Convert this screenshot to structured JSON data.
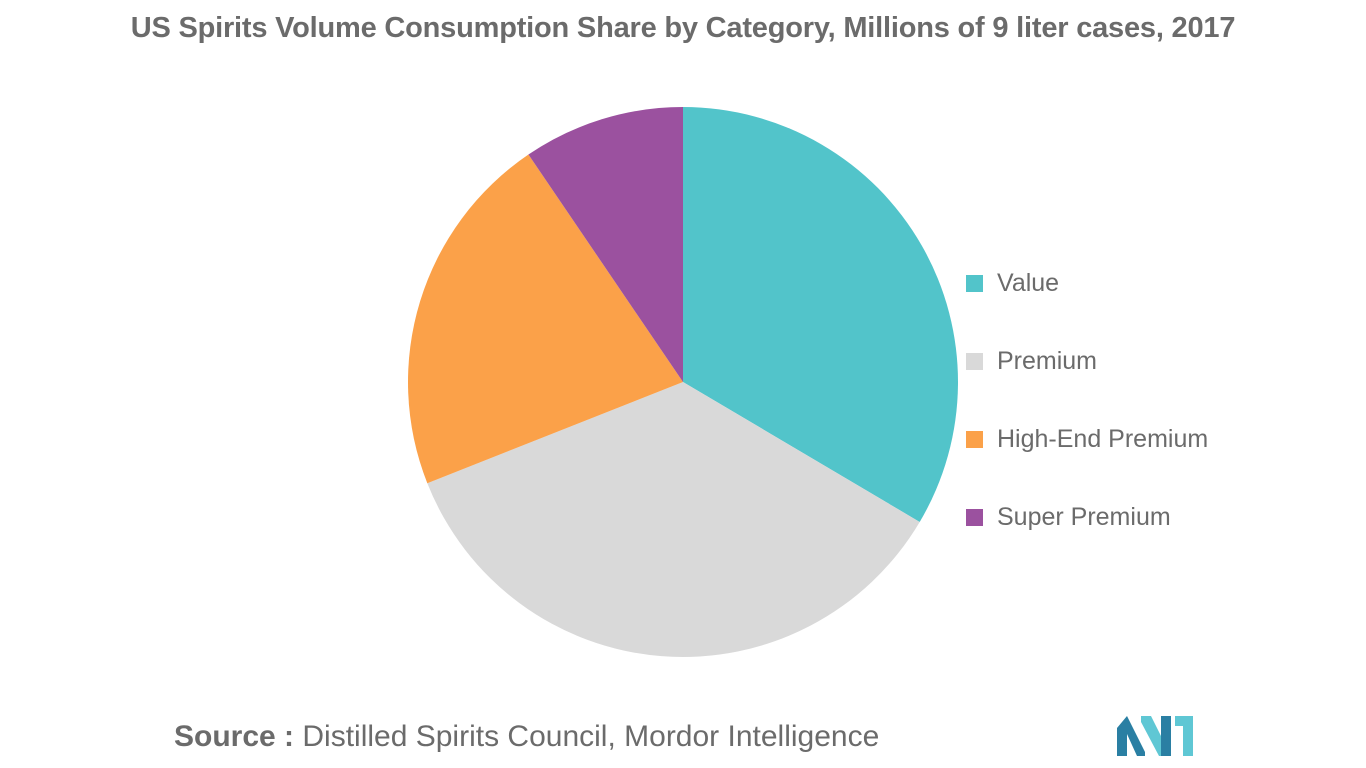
{
  "header": {
    "title": "US Spirits Volume Consumption Share by Category, Millions of 9 liter cases, 2017"
  },
  "chart_data": {
    "type": "pie",
    "title": "US Spirits Volume Consumption Share by Category, Millions of 9 liter cases, 2017",
    "categories": [
      "Value",
      "Premium",
      "High-End Premium",
      "Super Premium"
    ],
    "values": [
      33.5,
      35.5,
      21.5,
      9.5
    ],
    "colors": [
      "#52c4ca",
      "#d9d9d9",
      "#fba149",
      "#9b519f"
    ],
    "start_angle": "top (12 o'clock)",
    "direction": "clockwise",
    "legend_position": "right"
  },
  "footer": {
    "source_prefix": "Source :",
    "source_text": "Distilled Spirits Council, Mordor Intelligence"
  },
  "logo": {
    "icon": "mordor-intelligence-logo",
    "colors": [
      "#2a7fa3",
      "#5fc7d4"
    ]
  }
}
